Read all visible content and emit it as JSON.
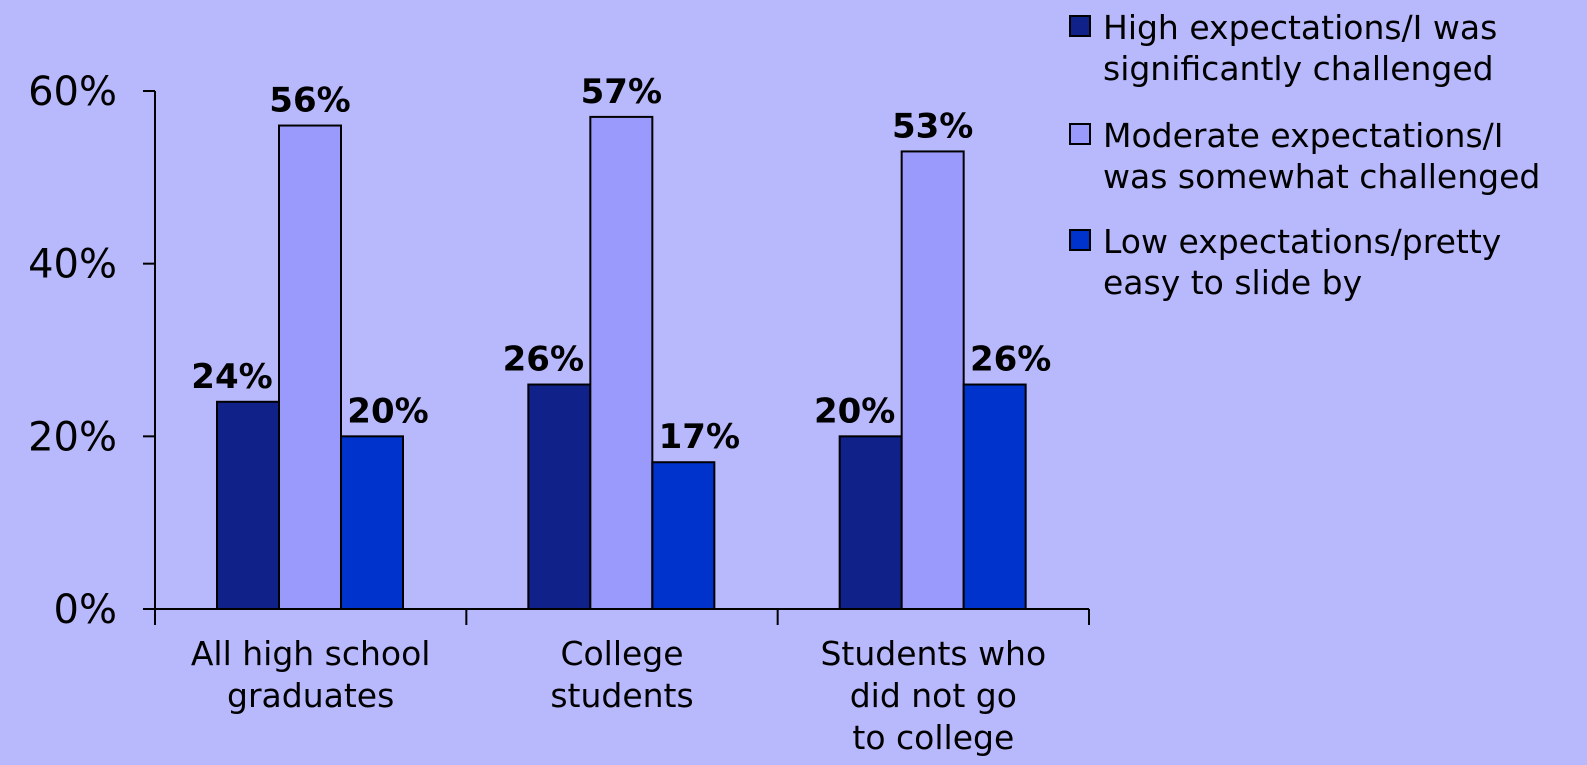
{
  "chart_data": {
    "type": "bar",
    "categories": [
      [
        "All high school",
        "graduates"
      ],
      [
        "College",
        "students"
      ],
      [
        "Students who",
        "did not go",
        "to college"
      ]
    ],
    "series": [
      {
        "name": [
          "High expectations/I was",
          "significantly challenged"
        ],
        "values": [
          24,
          26,
          20
        ],
        "color": "#10228a"
      },
      {
        "name": [
          "Moderate expectations/I",
          "was somewhat challenged"
        ],
        "values": [
          56,
          57,
          53
        ],
        "color": "#9a9afc"
      },
      {
        "name": [
          "Low expectations/pretty",
          "easy to slide by"
        ],
        "values": [
          20,
          17,
          26
        ],
        "color": "#0033cc"
      }
    ],
    "value_suffix": "%",
    "yticks": [
      0,
      20,
      40,
      60
    ],
    "ylim": [
      0,
      60
    ],
    "legend_position": "top-right",
    "grid": false,
    "background": "#b8b8fc"
  }
}
